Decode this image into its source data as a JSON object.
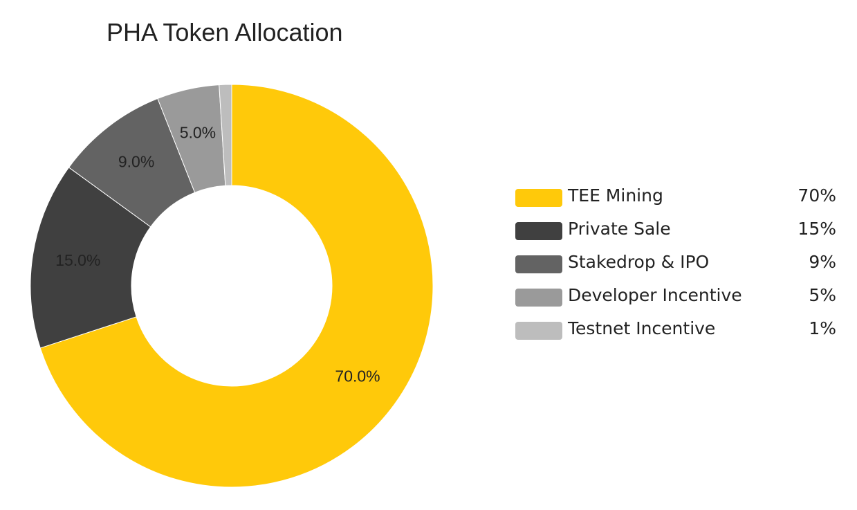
{
  "chart_data": {
    "type": "pie",
    "title": "PHA Token Allocation",
    "categories": [
      "TEE Mining",
      "Private Sale",
      "Stakedrop & IPO",
      "Developer Incentive",
      "Testnet Incentive"
    ],
    "values": [
      70,
      15,
      9,
      5,
      1
    ],
    "slice_labels": [
      "70.0%",
      "15.0%",
      "9.0%",
      "5.0%",
      ""
    ],
    "donut": true,
    "legend_position": "right",
    "colors": [
      "#FFC90A",
      "#404040",
      "#636363",
      "#9A9A9A",
      "#BDBDBD"
    ]
  },
  "legend": {
    "items": [
      {
        "label": "TEE Mining",
        "value": "70%",
        "color": "#FFC90A"
      },
      {
        "label": "Private Sale",
        "value": "15%",
        "color": "#404040"
      },
      {
        "label": "Stakedrop & IPO",
        "value": "9%",
        "color": "#636363"
      },
      {
        "label": "Developer Incentive",
        "value": "5%",
        "color": "#9A9A9A"
      },
      {
        "label": "Testnet Incentive",
        "value": "1%",
        "color": "#BDBDBD"
      }
    ]
  }
}
